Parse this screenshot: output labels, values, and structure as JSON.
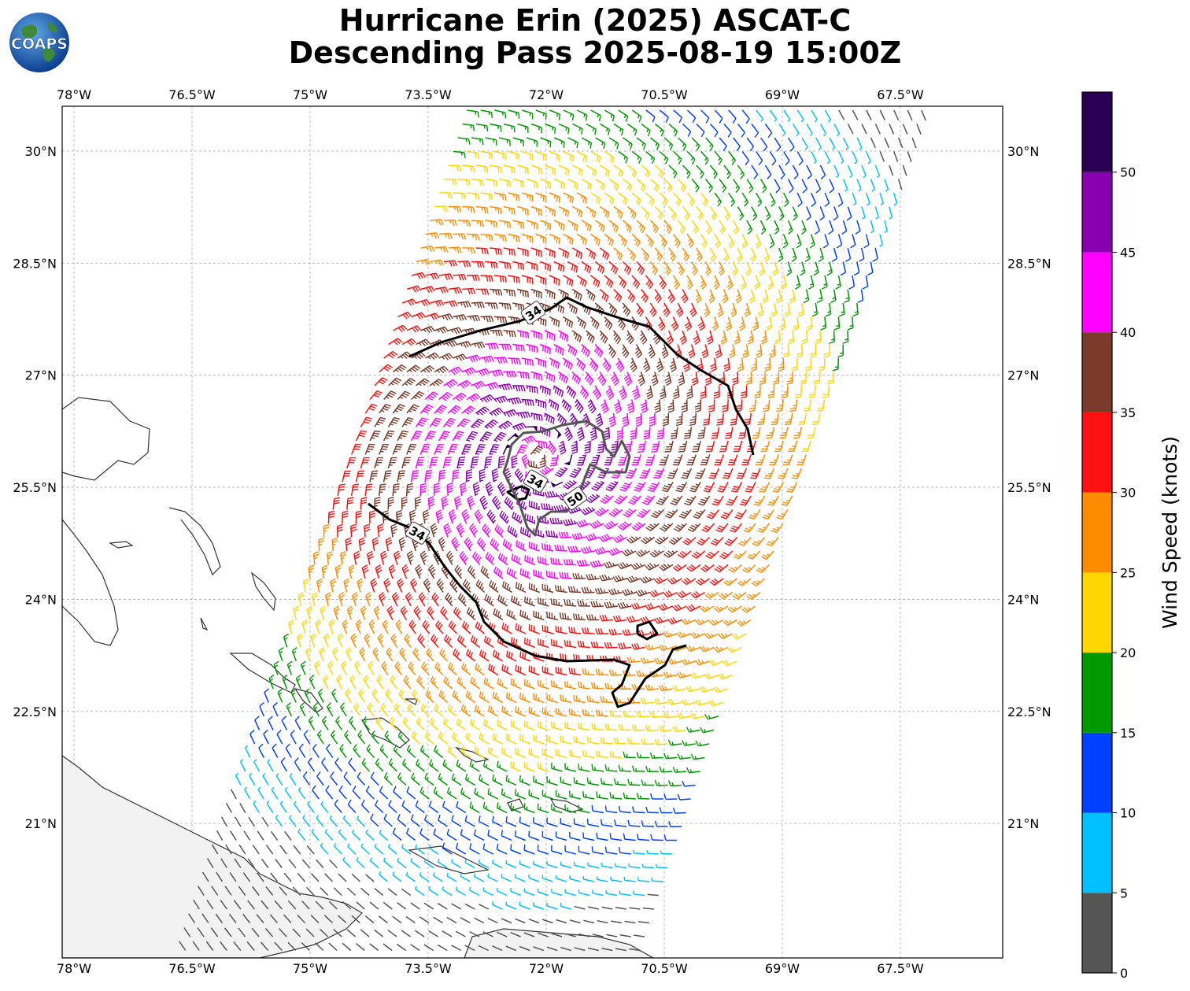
{
  "title": {
    "line1": "Hurricane Erin (2025) ASCAT-C",
    "line2": "Descending Pass 2025-08-19 15:00Z"
  },
  "logo": {
    "text": "COAPS"
  },
  "map": {
    "lon_ticks": [
      "78°W",
      "76.5°W",
      "75°W",
      "73.5°W",
      "72°W",
      "70.5°W",
      "69°W",
      "67.5°W"
    ],
    "lat_ticks": [
      "30°N",
      "28.5°N",
      "27°N",
      "25.5°N",
      "24°N",
      "22.5°N",
      "21°N"
    ],
    "lon_values": [
      -78,
      -76.5,
      -75,
      -73.5,
      -72,
      -70.5,
      -69,
      -67.5
    ],
    "lat_values": [
      30,
      28.5,
      27,
      25.5,
      24,
      22.5,
      21
    ],
    "extent": {
      "lon_min": -78.15,
      "lon_max": -66.2,
      "lat_min": 19.2,
      "lat_max": 30.6
    },
    "storm_center": {
      "lon": -72.1,
      "lat": 25.9
    },
    "contour_labels": [
      "34",
      "34",
      "34",
      "50"
    ]
  },
  "colorbar": {
    "title": "Wind Speed (knots)",
    "ticks": [
      "0",
      "5",
      "10",
      "15",
      "20",
      "25",
      "30",
      "35",
      "40",
      "45",
      "50"
    ],
    "bands": [
      {
        "min": 0,
        "max": 5,
        "color": "#555555"
      },
      {
        "min": 5,
        "max": 10,
        "color": "#00bfff"
      },
      {
        "min": 10,
        "max": 15,
        "color": "#0040ff"
      },
      {
        "min": 15,
        "max": 20,
        "color": "#009900"
      },
      {
        "min": 20,
        "max": 25,
        "color": "#ffd700"
      },
      {
        "min": 25,
        "max": 30,
        "color": "#ff8c00"
      },
      {
        "min": 30,
        "max": 35,
        "color": "#ff1010"
      },
      {
        "min": 35,
        "max": 40,
        "color": "#7a3b2a"
      },
      {
        "min": 40,
        "max": 45,
        "color": "#ff00ff"
      },
      {
        "min": 45,
        "max": 50,
        "color": "#8800b0"
      },
      {
        "min": 50,
        "max": 55,
        "color": "#2a0055"
      }
    ]
  }
}
